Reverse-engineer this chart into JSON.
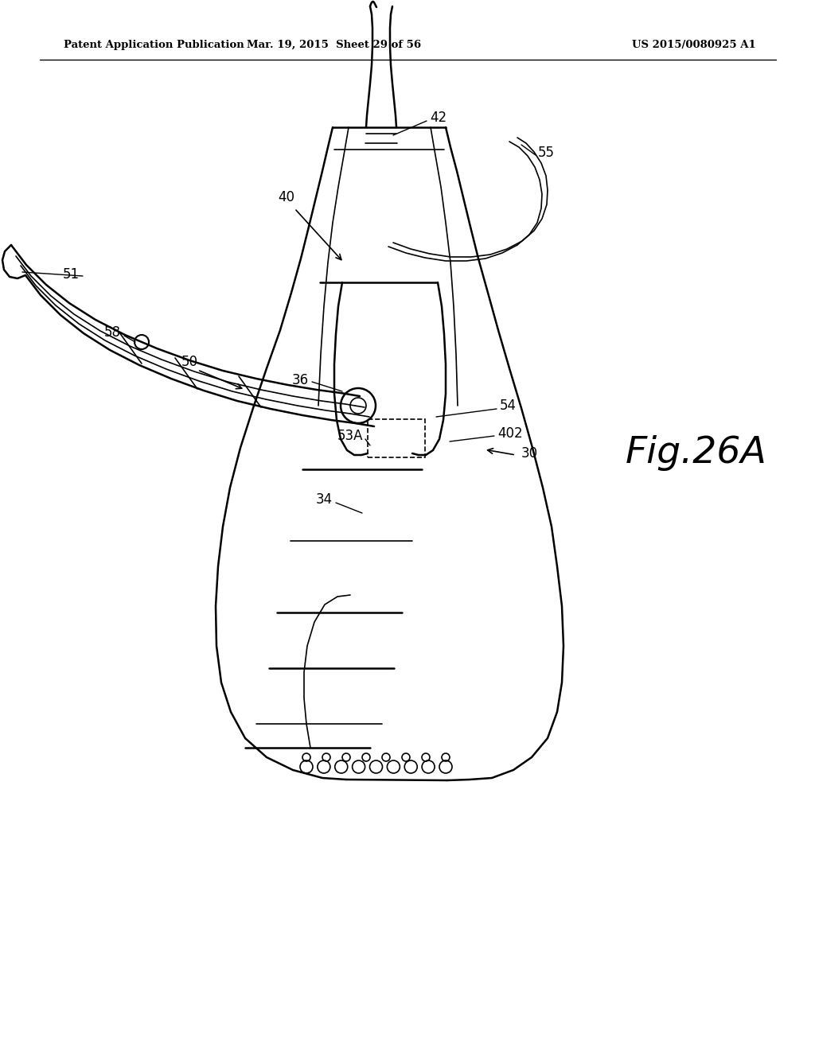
{
  "background_color": "#ffffff",
  "line_color": "#000000",
  "header_left": "Patent Application Publication",
  "header_mid": "Mar. 19, 2015  Sheet 29 of 56",
  "header_right": "US 2015/0080925 A1",
  "fig_label": "Fig.26A"
}
